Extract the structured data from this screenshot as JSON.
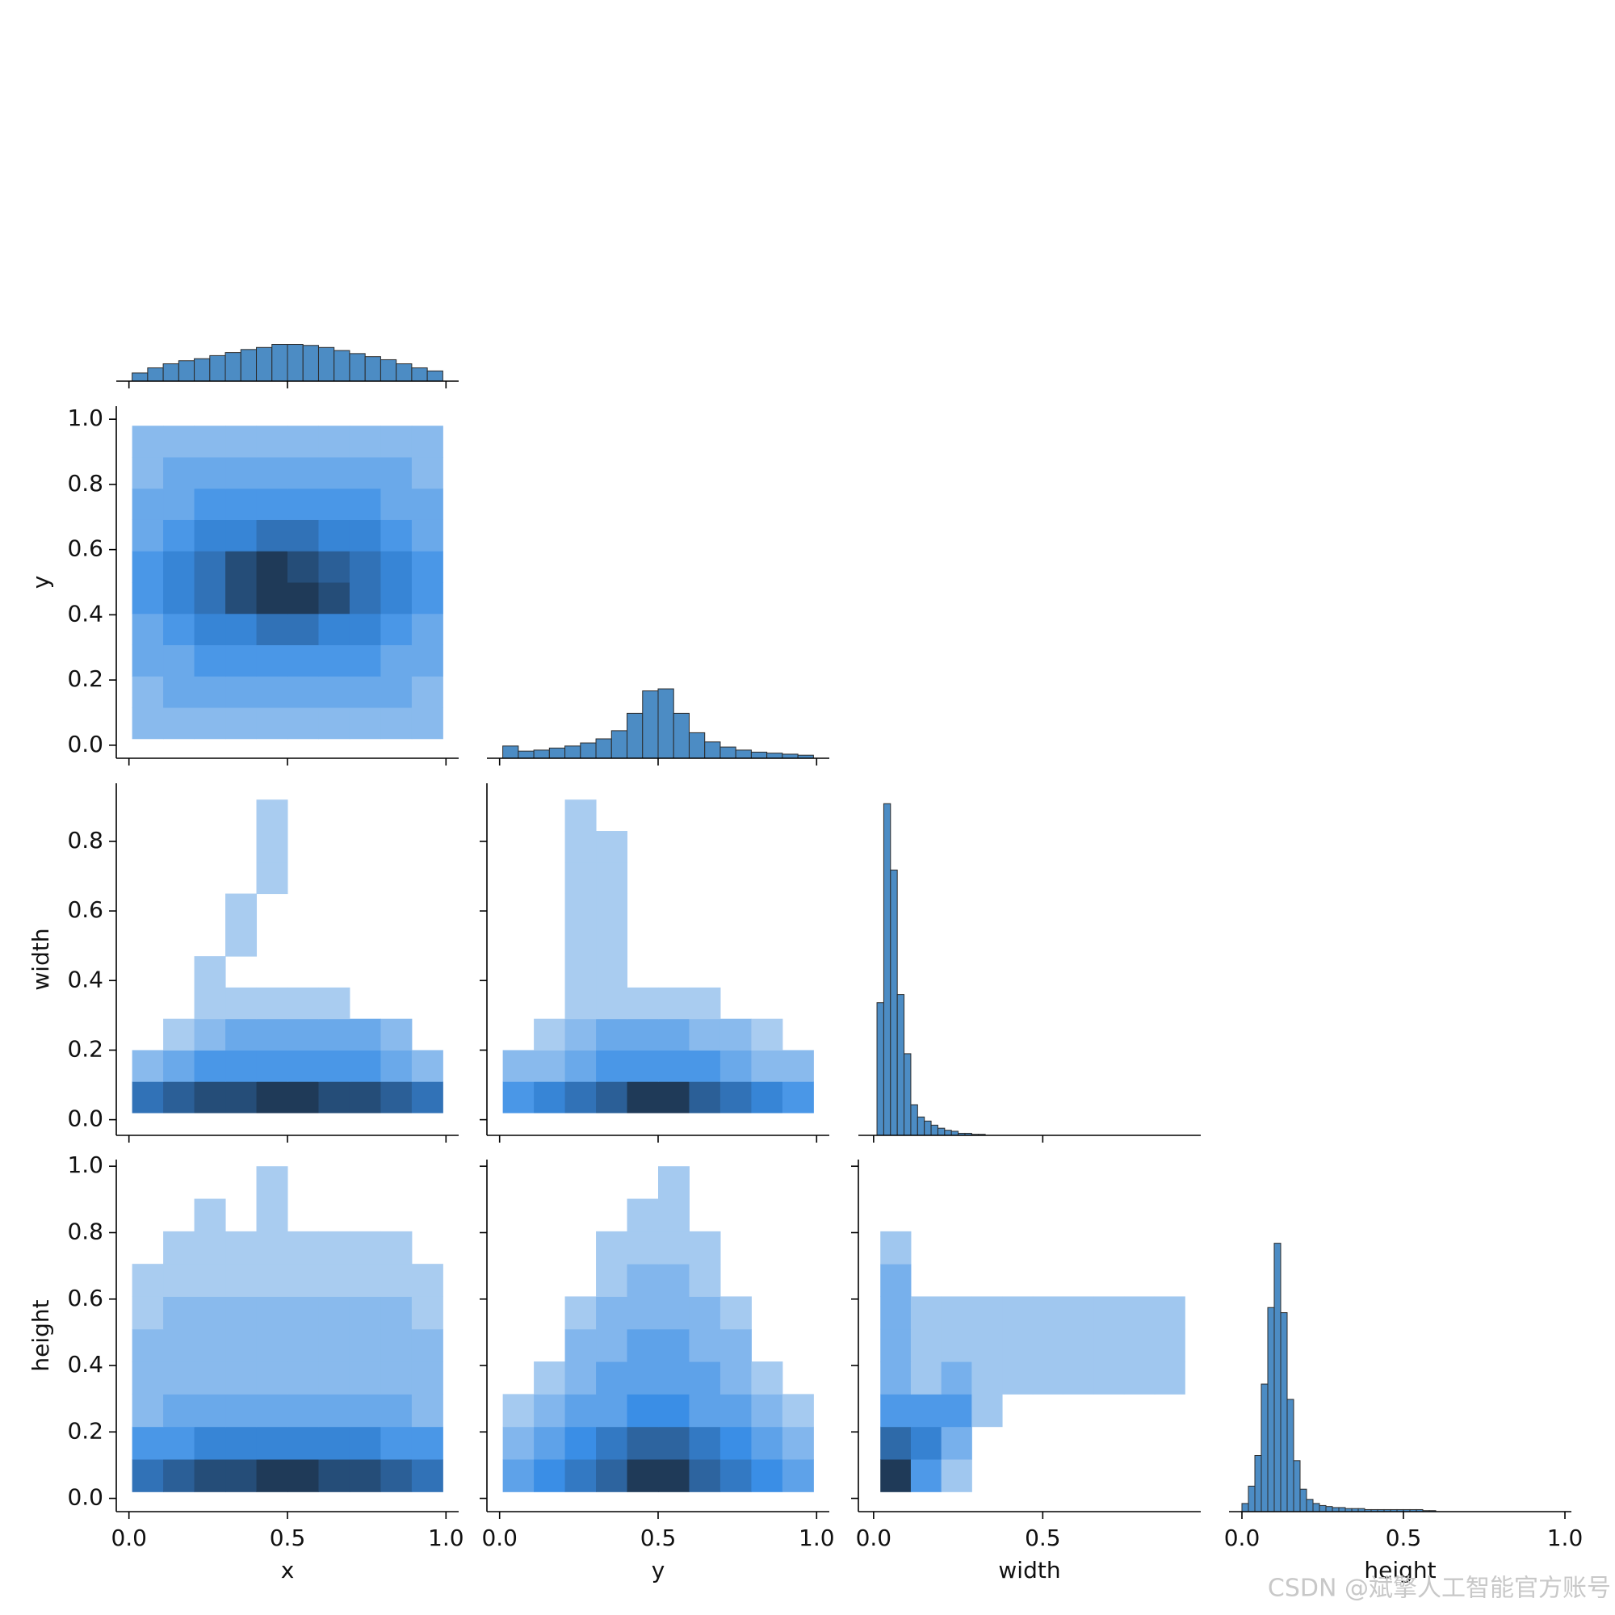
{
  "chart_data": {
    "type": "pairplot",
    "watermark": "CSDN @斌擎人工智能官方账号",
    "hist_color": "#4c8cc4",
    "edge_color": "#2b2b2b",
    "colors": [
      "#c9def3",
      "#3a8ee6",
      "#1f3a58"
    ],
    "variables": [
      {
        "label": "x",
        "lim": [
          -0.04,
          1.04
        ],
        "xticks": [
          {
            "value": 0,
            "label": "0.0"
          },
          0.5,
          {
            "value": 1,
            "label": "1.0"
          }
        ]
      },
      {
        "label": "y",
        "lim": [
          -0.04,
          1.04
        ],
        "xticks": [
          {
            "value": 0,
            "label": "0.0"
          },
          0.5,
          {
            "value": 1,
            "label": "1.0"
          }
        ],
        "yticks": [
          {
            "value": 0,
            "label": "0.0"
          },
          0.2,
          0.4,
          0.6,
          0.8,
          {
            "value": 1,
            "label": "1.0"
          }
        ]
      },
      {
        "label": "width",
        "lim": [
          -0.045,
          0.967
        ],
        "xticks": [
          {
            "value": 0,
            "label": "0.0"
          },
          0.5
        ],
        "yticks": [
          {
            "value": 0,
            "label": "0.0"
          },
          0.2,
          0.4,
          0.6,
          0.8
        ]
      },
      {
        "label": "height",
        "lim": [
          -0.04,
          1.02
        ],
        "xticks": [
          {
            "value": 0,
            "label": "0.0"
          },
          0.5,
          {
            "value": 1,
            "label": "1.0"
          }
        ],
        "yticks": [
          {
            "value": 0,
            "label": "0.0"
          },
          0.2,
          0.4,
          0.6,
          0.8,
          {
            "value": 1,
            "label": "1.0"
          }
        ]
      }
    ],
    "diag": [
      {
        "type": "histogram",
        "ylim": [
          0,
          345
        ],
        "bins": [
          0.01,
          0.059,
          0.108,
          0.157,
          0.206,
          0.255,
          0.304,
          0.353,
          0.402,
          0.451,
          0.5,
          0.549,
          0.598,
          0.647,
          0.696,
          0.745,
          0.794,
          0.843,
          0.892,
          0.941,
          0.99
        ],
        "counts": [
          8,
          13,
          17,
          20,
          22,
          25,
          28,
          31,
          33,
          36,
          36,
          35,
          33,
          30,
          27,
          24,
          21,
          17,
          13,
          10
        ]
      },
      {
        "type": "histogram",
        "ylim": [
          0,
          345
        ],
        "bins": [
          0.01,
          0.059,
          0.108,
          0.157,
          0.206,
          0.255,
          0.304,
          0.353,
          0.402,
          0.451,
          0.5,
          0.549,
          0.598,
          0.647,
          0.696,
          0.745,
          0.794,
          0.843,
          0.892,
          0.941,
          0.99
        ],
        "counts": [
          12,
          7,
          8,
          10,
          12,
          15,
          19,
          27,
          44,
          66,
          68,
          44,
          25,
          16,
          11,
          8,
          6,
          5,
          4,
          3
        ]
      },
      {
        "type": "histogram",
        "ylim": [
          0,
          345
        ],
        "bins": [
          0.01,
          0.03,
          0.05,
          0.07,
          0.09,
          0.11,
          0.13,
          0.15,
          0.17,
          0.19,
          0.21,
          0.23,
          0.25,
          0.27,
          0.29,
          0.31,
          0.33
        ],
        "counts": [
          130,
          325,
          260,
          138,
          80,
          30,
          18,
          14,
          10,
          7,
          5,
          4,
          2,
          2,
          1,
          1
        ]
      },
      {
        "type": "histogram",
        "ylim": [
          0,
          345
        ],
        "bins": [
          0,
          0.02,
          0.04,
          0.06,
          0.08,
          0.1,
          0.12,
          0.14,
          0.16,
          0.18,
          0.2,
          0.22,
          0.24,
          0.26,
          0.28,
          0.3,
          0.32,
          0.34,
          0.36,
          0.38,
          0.4,
          0.42,
          0.44,
          0.46,
          0.48,
          0.5,
          0.52,
          0.54,
          0.56,
          0.58,
          0.6
        ],
        "counts": [
          8,
          25,
          55,
          125,
          200,
          263,
          195,
          110,
          50,
          22,
          12,
          8,
          6,
          5,
          4,
          4,
          3,
          3,
          3,
          2,
          2,
          2,
          2,
          2,
          2,
          2,
          2,
          2,
          1,
          1
        ]
      }
    ],
    "lower": [
      {
        "type": "hist2d",
        "x_bins": [
          0.01,
          0.108,
          0.206,
          0.304,
          0.402,
          0.5,
          0.598,
          0.696,
          0.794,
          0.892,
          0.99
        ],
        "y_bins": [
          0.02,
          0.116,
          0.212,
          0.308,
          0.404,
          0.5,
          0.596,
          0.692,
          0.788,
          0.884,
          0.98
        ],
        "counts": [
          [
            2,
            2,
            2,
            2,
            2,
            2,
            2,
            2,
            2,
            2
          ],
          [
            2,
            3,
            3,
            3,
            3,
            3,
            3,
            3,
            3,
            2
          ],
          [
            3,
            3,
            4,
            4,
            4,
            4,
            4,
            4,
            3,
            3
          ],
          [
            3,
            4,
            5,
            5,
            6,
            6,
            5,
            5,
            4,
            3
          ],
          [
            4,
            5,
            6,
            8,
            9,
            9,
            8,
            6,
            5,
            4
          ],
          [
            4,
            5,
            6,
            8,
            9,
            8,
            7,
            6,
            5,
            4
          ],
          [
            3,
            4,
            5,
            5,
            6,
            6,
            5,
            5,
            4,
            3
          ],
          [
            3,
            3,
            4,
            4,
            4,
            4,
            4,
            4,
            3,
            3
          ],
          [
            2,
            3,
            3,
            3,
            3,
            3,
            3,
            3,
            3,
            2
          ],
          [
            2,
            2,
            2,
            2,
            2,
            2,
            2,
            2,
            2,
            2
          ]
        ]
      },
      {
        "type": "hist2d",
        "x_bins": [
          0.01,
          0.108,
          0.206,
          0.304,
          0.402,
          0.5,
          0.598,
          0.696,
          0.794,
          0.892,
          0.99
        ],
        "y_bins": [
          0.02,
          0.11,
          0.2,
          0.29,
          0.38,
          0.47,
          0.56,
          0.65,
          0.74,
          0.83,
          0.92
        ],
        "counts": [
          [
            6,
            7,
            8,
            8,
            9,
            9,
            8,
            8,
            7,
            6
          ],
          [
            2,
            3,
            4,
            4,
            4,
            4,
            4,
            4,
            3,
            2
          ],
          [
            0,
            1,
            2,
            3,
            3,
            3,
            3,
            3,
            2,
            0
          ],
          [
            0,
            0,
            1,
            1,
            1,
            1,
            1,
            0,
            0,
            0
          ],
          [
            0,
            0,
            1,
            0,
            0,
            0,
            0,
            0,
            0,
            0
          ],
          [
            0,
            0,
            0,
            1,
            0,
            0,
            0,
            0,
            0,
            0
          ],
          [
            0,
            0,
            0,
            1,
            0,
            0,
            0,
            0,
            0,
            0
          ],
          [
            0,
            0,
            0,
            0,
            1,
            0,
            0,
            0,
            0,
            0
          ],
          [
            0,
            0,
            0,
            0,
            1,
            0,
            0,
            0,
            0,
            0
          ],
          [
            0,
            0,
            0,
            0,
            1,
            0,
            0,
            0,
            0,
            0
          ]
        ]
      },
      {
        "type": "hist2d",
        "x_bins": [
          0.01,
          0.108,
          0.206,
          0.304,
          0.402,
          0.5,
          0.598,
          0.696,
          0.794,
          0.892,
          0.99
        ],
        "y_bins": [
          0.02,
          0.11,
          0.2,
          0.29,
          0.38,
          0.47,
          0.56,
          0.65,
          0.74,
          0.83,
          0.92
        ],
        "counts": [
          [
            4,
            5,
            6,
            7,
            9,
            9,
            7,
            6,
            5,
            4
          ],
          [
            2,
            2,
            3,
            4,
            4,
            4,
            4,
            3,
            2,
            2
          ],
          [
            0,
            1,
            2,
            3,
            3,
            3,
            2,
            2,
            1,
            0
          ],
          [
            0,
            0,
            1,
            1,
            1,
            1,
            1,
            0,
            0,
            0
          ],
          [
            0,
            0,
            1,
            1,
            0,
            0,
            0,
            0,
            0,
            0
          ],
          [
            0,
            0,
            1,
            1,
            0,
            0,
            0,
            0,
            0,
            0
          ],
          [
            0,
            0,
            1,
            1,
            0,
            0,
            0,
            0,
            0,
            0
          ],
          [
            0,
            0,
            1,
            1,
            0,
            0,
            0,
            0,
            0,
            0
          ],
          [
            0,
            0,
            1,
            1,
            0,
            0,
            0,
            0,
            0,
            0
          ],
          [
            0,
            0,
            1,
            0,
            0,
            0,
            0,
            0,
            0,
            0
          ]
        ]
      },
      {
        "type": "hist2d",
        "x_bins": [
          0.01,
          0.108,
          0.206,
          0.304,
          0.402,
          0.5,
          0.598,
          0.696,
          0.794,
          0.892,
          0.99
        ],
        "y_bins": [
          0.02,
          0.118,
          0.216,
          0.314,
          0.412,
          0.51,
          0.608,
          0.706,
          0.804,
          0.902,
          1.0
        ],
        "counts": [
          [
            6,
            7,
            8,
            8,
            9,
            9,
            8,
            8,
            7,
            6
          ],
          [
            4,
            4,
            5,
            5,
            5,
            5,
            5,
            5,
            4,
            4
          ],
          [
            2,
            3,
            3,
            3,
            3,
            3,
            3,
            3,
            3,
            2
          ],
          [
            2,
            2,
            2,
            2,
            2,
            2,
            2,
            2,
            2,
            2
          ],
          [
            2,
            2,
            2,
            2,
            2,
            2,
            2,
            2,
            2,
            2
          ],
          [
            1,
            2,
            2,
            2,
            2,
            2,
            2,
            2,
            2,
            1
          ],
          [
            1,
            1,
            1,
            1,
            1,
            1,
            1,
            1,
            1,
            1
          ],
          [
            0,
            1,
            1,
            1,
            1,
            1,
            1,
            1,
            1,
            0
          ],
          [
            0,
            0,
            1,
            0,
            1,
            0,
            0,
            0,
            0,
            0
          ],
          [
            0,
            0,
            0,
            0,
            1,
            0,
            0,
            0,
            0,
            0
          ]
        ]
      },
      {
        "type": "hist2d",
        "x_bins": [
          0.01,
          0.108,
          0.206,
          0.304,
          0.402,
          0.5,
          0.598,
          0.696,
          0.794,
          0.892,
          0.99
        ],
        "y_bins": [
          0.02,
          0.118,
          0.216,
          0.314,
          0.412,
          0.51,
          0.608,
          0.706,
          0.804,
          0.902,
          1.0
        ],
        "counts": [
          [
            3,
            4,
            5,
            6,
            8,
            8,
            6,
            5,
            4,
            3
          ],
          [
            2,
            3,
            4,
            5,
            6,
            6,
            5,
            4,
            3,
            2
          ],
          [
            1,
            2,
            3,
            3,
            4,
            4,
            3,
            3,
            2,
            1
          ],
          [
            0,
            1,
            2,
            3,
            3,
            3,
            3,
            2,
            1,
            0
          ],
          [
            0,
            0,
            2,
            2,
            3,
            3,
            2,
            2,
            0,
            0
          ],
          [
            0,
            0,
            1,
            2,
            2,
            2,
            2,
            1,
            0,
            0
          ],
          [
            0,
            0,
            0,
            1,
            2,
            2,
            1,
            0,
            0,
            0
          ],
          [
            0,
            0,
            0,
            1,
            1,
            1,
            1,
            0,
            0,
            0
          ],
          [
            0,
            0,
            0,
            0,
            1,
            1,
            0,
            0,
            0,
            0
          ],
          [
            0,
            0,
            0,
            0,
            0,
            1,
            0,
            0,
            0,
            0
          ]
        ]
      },
      {
        "type": "hist2d",
        "x_bins": [
          0.02,
          0.11,
          0.2,
          0.29,
          0.38,
          0.47,
          0.56,
          0.65,
          0.74,
          0.83,
          0.92
        ],
        "y_bins": [
          0.02,
          0.118,
          0.216,
          0.314,
          0.412,
          0.51,
          0.608,
          0.706,
          0.804,
          0.902,
          1.0
        ],
        "counts": [
          [
            7,
            3,
            1,
            0,
            0,
            0,
            0,
            0,
            0,
            0
          ],
          [
            5,
            4,
            2,
            0,
            0,
            0,
            0,
            0,
            0,
            0
          ],
          [
            3,
            3,
            3,
            1,
            0,
            0,
            0,
            0,
            0,
            0
          ],
          [
            2,
            1,
            2,
            1,
            1,
            1,
            1,
            1,
            1,
            1
          ],
          [
            2,
            1,
            1,
            1,
            1,
            1,
            1,
            1,
            1,
            1
          ],
          [
            2,
            1,
            1,
            1,
            1,
            1,
            1,
            1,
            1,
            1
          ],
          [
            2,
            0,
            0,
            0,
            0,
            0,
            0,
            0,
            0,
            0
          ],
          [
            1,
            0,
            0,
            0,
            0,
            0,
            0,
            0,
            0,
            0
          ],
          [
            0,
            0,
            0,
            0,
            0,
            0,
            0,
            0,
            0,
            0
          ],
          [
            0,
            0,
            0,
            0,
            0,
            0,
            0,
            0,
            0,
            0
          ]
        ]
      }
    ]
  }
}
